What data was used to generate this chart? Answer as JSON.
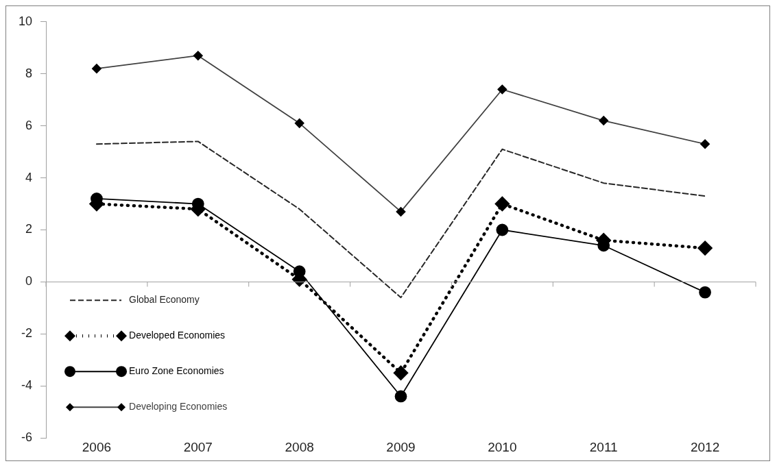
{
  "chart_data": {
    "type": "line",
    "categories": [
      "2006",
      "2007",
      "2008",
      "2009",
      "2010",
      "2011",
      "2012"
    ],
    "ylim": [
      -6,
      10
    ],
    "yticks": [
      -6,
      -4,
      -2,
      0,
      2,
      4,
      6,
      8,
      10
    ],
    "grid": false,
    "legend": "bottom left",
    "ref_lines": [
      {
        "axis": "y",
        "value": 0
      }
    ],
    "series": [
      {
        "name": "Global Economy",
        "color": "#262626",
        "marker": "none",
        "line_style": "dashed",
        "values": [
          5.3,
          5.4,
          2.8,
          -0.6,
          5.1,
          3.8,
          3.3
        ]
      },
      {
        "name": "Developed Economies",
        "color": "#000000",
        "marker": "diamond",
        "line_style": "dotted",
        "values": [
          3.0,
          2.8,
          0.1,
          -3.5,
          3.0,
          1.6,
          1.3
        ]
      },
      {
        "name": "Euro Zone Economies",
        "color": "#000000",
        "marker": "circle",
        "line_style": "solid",
        "values": [
          3.2,
          3.0,
          0.4,
          -4.4,
          2.0,
          1.4,
          -0.4
        ]
      },
      {
        "name": "Developing Economies",
        "color": "#404040",
        "marker": "diamond",
        "line_style": "solid",
        "values": [
          8.2,
          8.7,
          6.1,
          2.7,
          7.4,
          6.2,
          5.3
        ]
      }
    ]
  }
}
